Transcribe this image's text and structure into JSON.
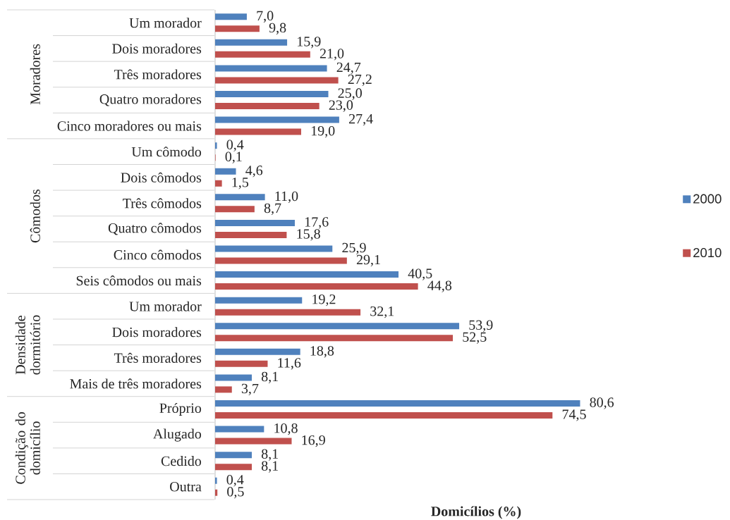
{
  "chart_data": {
    "type": "bar",
    "orientation": "horizontal",
    "xlabel": "Domicílios (%)",
    "categories": [
      "Um morador",
      "Dois moradores",
      "Três moradores",
      "Quatro moradores",
      "Cinco moradores ou mais",
      "Um cômodo",
      "Dois cômodos",
      "Três cômodos",
      "Quatro cômodos",
      "Cinco cômodos",
      "Seis cômodos ou mais",
      "Um morador",
      "Dois moradores",
      "Três moradores",
      "Mais de três moradores",
      "Próprio",
      "Alugado",
      "Cedido",
      "Outra"
    ],
    "series": [
      {
        "name": "2000",
        "color": "#4f81bd",
        "values": [
          7.0,
          15.9,
          24.7,
          25.0,
          27.4,
          0.4,
          4.6,
          11.0,
          17.6,
          25.9,
          40.5,
          19.2,
          53.9,
          18.8,
          8.1,
          80.6,
          10.8,
          8.1,
          0.4
        ],
        "value_labels": [
          "7,0",
          "15,9",
          "24,7",
          "25,0",
          "27,4",
          "0,4",
          "4,6",
          "11,0",
          "17,6",
          "25,9",
          "40,5",
          "19,2",
          "53,9",
          "18,8",
          "8,1",
          "80,6",
          "10,8",
          "8,1",
          "0,4"
        ]
      },
      {
        "name": "2010",
        "color": "#c0504d",
        "values": [
          9.8,
          21.0,
          27.2,
          23.0,
          19.0,
          0.1,
          1.5,
          8.7,
          15.8,
          29.1,
          44.8,
          32.1,
          52.5,
          11.6,
          3.7,
          74.5,
          16.9,
          8.1,
          0.5
        ],
        "value_labels": [
          "9,8",
          "21,0",
          "27,2",
          "23,0",
          "19,0",
          "0,1",
          "1,5",
          "8,7",
          "15,8",
          "29,1",
          "44,8",
          "32,1",
          "52,5",
          "11,6",
          "3,7",
          "74,5",
          "16,9",
          "8,1",
          "0,5"
        ]
      }
    ],
    "tick_labels": "y",
    "legend": "right",
    "annotations": [
      "Moradores",
      "Cômodos",
      "Densidade dormitório",
      "Condição do domicílio"
    ]
  }
}
